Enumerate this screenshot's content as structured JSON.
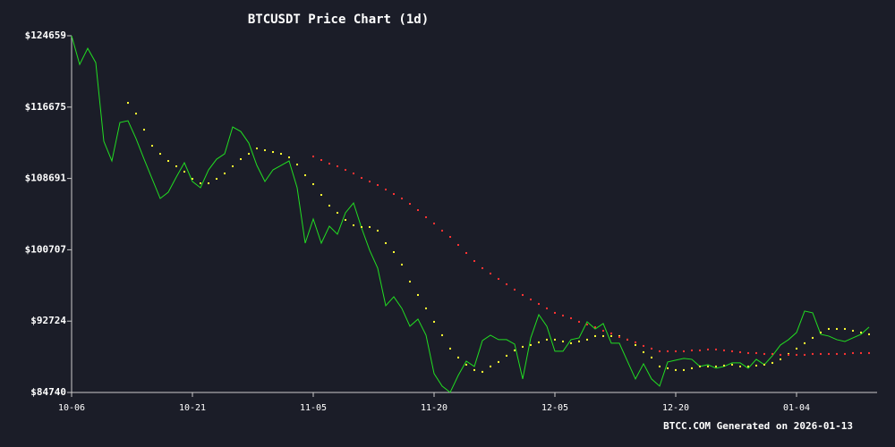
{
  "chart_data": {
    "type": "line",
    "title": "BTCUSDT Price Chart (1d)",
    "footer": "BTCC.COM Generated on 2026-01-13",
    "x": [
      "10-06",
      "10-07",
      "10-08",
      "10-09",
      "10-10",
      "10-11",
      "10-12",
      "10-13",
      "10-14",
      "10-15",
      "10-16",
      "10-17",
      "10-18",
      "10-19",
      "10-20",
      "10-21",
      "10-22",
      "10-23",
      "10-24",
      "10-25",
      "10-26",
      "10-27",
      "10-28",
      "10-29",
      "10-30",
      "10-31",
      "11-01",
      "11-02",
      "11-03",
      "11-04",
      "11-05",
      "11-06",
      "11-07",
      "11-08",
      "11-09",
      "11-10",
      "11-11",
      "11-12",
      "11-13",
      "11-14",
      "11-15",
      "11-16",
      "11-17",
      "11-18",
      "11-19",
      "11-20",
      "11-21",
      "11-22",
      "11-23",
      "11-24",
      "11-25",
      "11-26",
      "11-27",
      "11-28",
      "11-29",
      "11-30",
      "12-01",
      "12-02",
      "12-03",
      "12-04",
      "12-05",
      "12-06",
      "12-07",
      "12-08",
      "12-09",
      "12-10",
      "12-11",
      "12-12",
      "12-13",
      "12-14",
      "12-15",
      "12-16",
      "12-17",
      "12-18",
      "12-19",
      "12-20",
      "12-21",
      "12-22",
      "12-23",
      "12-24",
      "12-25",
      "12-26",
      "12-27",
      "12-28",
      "12-29",
      "12-30",
      "12-31",
      "01-01",
      "01-02",
      "01-03",
      "01-04",
      "01-05",
      "01-06",
      "01-07",
      "01-08",
      "01-09",
      "01-10",
      "01-11",
      "01-12",
      "01-13"
    ],
    "xticks": [
      "10-06",
      "10-21",
      "11-05",
      "11-20",
      "12-05",
      "12-20",
      "01-04"
    ],
    "ylim": [
      84740,
      124659
    ],
    "yticks": [
      {
        "value": 84740,
        "label": "$84740"
      },
      {
        "value": 92724,
        "label": "$92724"
      },
      {
        "value": 100707,
        "label": "$100707"
      },
      {
        "value": 108691,
        "label": "$108691"
      },
      {
        "value": 116675,
        "label": "$116675"
      },
      {
        "value": 124659,
        "label": "$124659"
      }
    ],
    "series": [
      {
        "color": "#22dd22",
        "style": "line",
        "values": [
          124659,
          121450,
          123250,
          121650,
          112850,
          110650,
          114950,
          115150,
          113150,
          110850,
          108650,
          106450,
          107150,
          108850,
          110450,
          108350,
          107650,
          109650,
          110850,
          111450,
          114450,
          113950,
          112650,
          110150,
          108350,
          109650,
          110150,
          110650,
          107650,
          101450,
          104150,
          101450,
          103350,
          102450,
          104850,
          105950,
          103150,
          100650,
          98650,
          94450,
          95450,
          94150,
          92150,
          92950,
          91150,
          86850,
          85450,
          84750,
          86650,
          88250,
          87650,
          90550,
          91150,
          90650,
          90650,
          90150,
          86250,
          90850,
          93450,
          92150,
          89350,
          89350,
          90650,
          90850,
          92650,
          91850,
          92450,
          90250,
          90250,
          88250,
          86250,
          87950,
          86250,
          85450,
          88150,
          88350,
          88550,
          88450,
          87650,
          87850,
          87450,
          87650,
          88050,
          88050,
          87450,
          88450,
          87850,
          88850,
          90050,
          90650,
          91450,
          93850,
          93650,
          91250,
          91050,
          90650,
          90450,
          90850,
          91250,
          92050
        ]
      },
      {
        "color": "#ffff33",
        "style": "dots",
        "values": [
          null,
          null,
          null,
          null,
          null,
          null,
          null,
          117150,
          115950,
          114150,
          112350,
          111450,
          110650,
          110050,
          109450,
          108650,
          108150,
          108150,
          108650,
          109250,
          110050,
          110850,
          111450,
          112050,
          111850,
          111650,
          111450,
          111050,
          110250,
          109050,
          108050,
          106850,
          105650,
          104850,
          104050,
          103450,
          103250,
          103250,
          102850,
          101450,
          100450,
          99050,
          97150,
          95650,
          94150,
          92650,
          91150,
          89650,
          88650,
          87850,
          87250,
          87050,
          87650,
          88150,
          88850,
          89450,
          89850,
          90050,
          90350,
          90650,
          90650,
          90450,
          90250,
          90450,
          90650,
          91050,
          91050,
          91050,
          91050,
          90650,
          90050,
          89250,
          88650,
          87650,
          87450,
          87250,
          87250,
          87450,
          87650,
          87650,
          87650,
          87750,
          87850,
          87650,
          87650,
          87750,
          87850,
          88050,
          88450,
          89050,
          89650,
          90250,
          90850,
          91450,
          91850,
          91850,
          91850,
          91650,
          91450,
          91250
        ]
      },
      {
        "color": "#ff3333",
        "style": "dots",
        "values": [
          null,
          null,
          null,
          null,
          null,
          null,
          null,
          null,
          null,
          null,
          null,
          null,
          null,
          null,
          null,
          null,
          null,
          null,
          null,
          null,
          null,
          null,
          null,
          null,
          null,
          null,
          null,
          null,
          null,
          null,
          111150,
          110750,
          110350,
          110050,
          109650,
          109250,
          108750,
          108350,
          107950,
          107450,
          106950,
          106450,
          105850,
          105150,
          104350,
          103650,
          102850,
          102150,
          101250,
          100350,
          99450,
          98650,
          98050,
          97450,
          96850,
          96250,
          95650,
          95150,
          94650,
          94150,
          93650,
          93350,
          93050,
          92650,
          92350,
          92050,
          91650,
          91350,
          90950,
          90650,
          90350,
          89950,
          89650,
          89350,
          89350,
          89350,
          89350,
          89450,
          89450,
          89550,
          89550,
          89450,
          89350,
          89250,
          89150,
          89150,
          89050,
          89050,
          88950,
          88950,
          88950,
          88950,
          89050,
          89050,
          89050,
          89050,
          89050,
          89150,
          89150,
          89150
        ]
      }
    ]
  }
}
